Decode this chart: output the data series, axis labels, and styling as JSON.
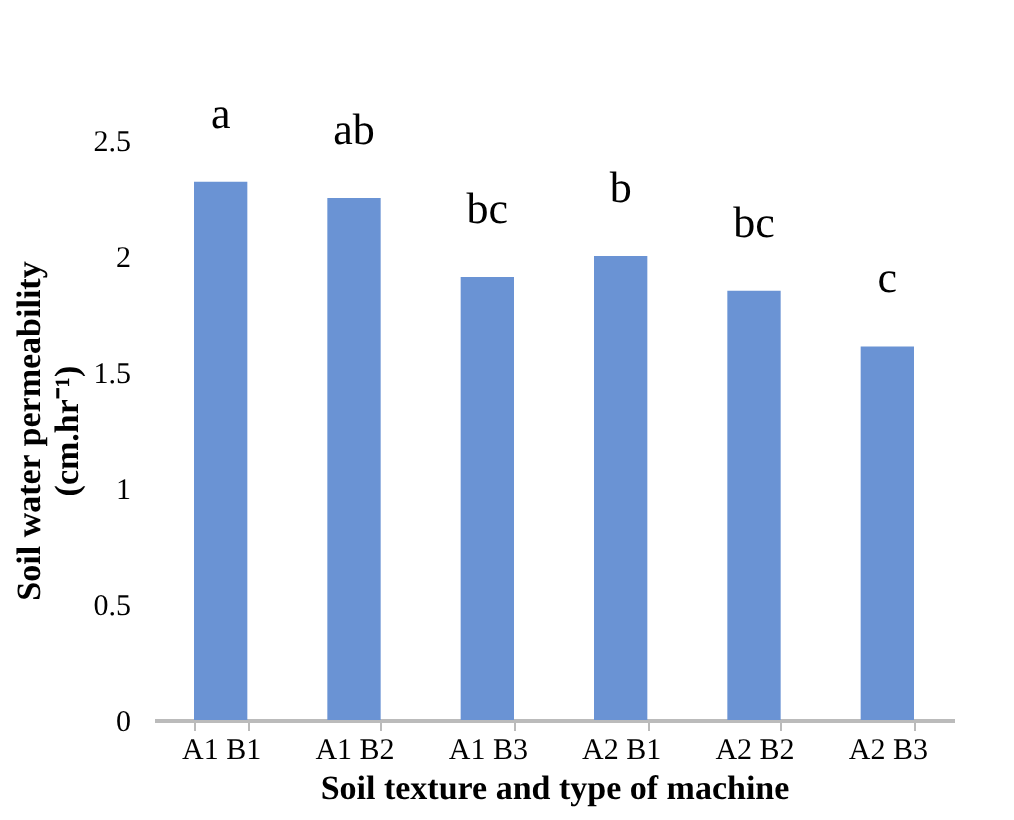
{
  "chart_data": {
    "type": "bar",
    "categories": [
      "A1 B1",
      "A1 B2",
      "A1 B3",
      "A2 B1",
      "A2 B2",
      "A2 B3"
    ],
    "values": [
      2.32,
      2.25,
      1.91,
      2.0,
      1.85,
      1.61
    ],
    "color": "#6a93d4",
    "xlabel": "Soil texture and type of machine",
    "ylabel": "Soil water permeability\n(cm.hr⁻¹)",
    "ylim": [
      0,
      2.5
    ],
    "yticks": [
      0,
      0.5,
      1,
      1.5,
      2,
      2.5
    ],
    "grid": false,
    "annotations": [
      "a",
      "ab",
      "bc",
      "b",
      "bc",
      "c"
    ]
  }
}
